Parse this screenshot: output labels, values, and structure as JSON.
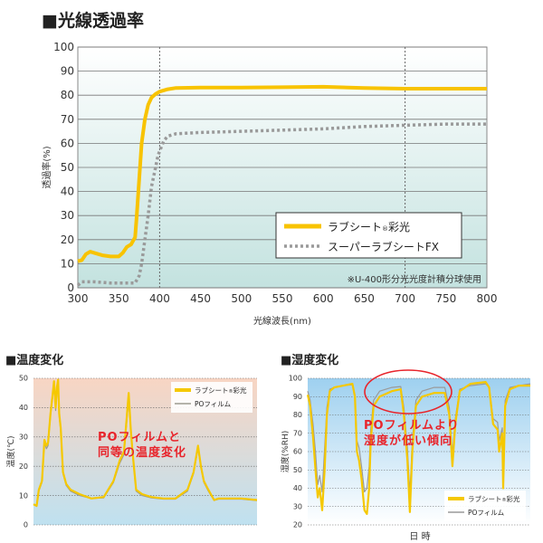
{
  "chart_data": [
    {
      "type": "line",
      "title": "■光線透過率",
      "xlabel": "光線波長(nm)",
      "ylabel": "透過率(%)",
      "xlim": [
        300,
        800
      ],
      "ylim": [
        0,
        100
      ],
      "xticks": [
        300,
        350,
        400,
        450,
        500,
        550,
        600,
        650,
        700,
        750,
        800
      ],
      "yticks": [
        0,
        10,
        20,
        30,
        40,
        50,
        60,
        70,
        80,
        90,
        100
      ],
      "grid": true,
      "reference_lines_x": [
        400,
        700
      ],
      "legend_placement": "bottom-right",
      "annotation": "※U-400形分光光度計積分球使用",
      "background": [
        "#ffffff",
        "#c3e2df"
      ],
      "series": [
        {
          "name": "ラブシート®彩光",
          "color": "#f8c300",
          "style": "solid",
          "x": [
            300,
            305,
            310,
            315,
            320,
            330,
            340,
            350,
            355,
            360,
            365,
            370,
            372,
            375,
            378,
            382,
            386,
            390,
            395,
            400,
            410,
            420,
            450,
            500,
            550,
            600,
            650,
            700,
            750,
            800
          ],
          "y": [
            11,
            11.5,
            14,
            15,
            14.5,
            13.5,
            13,
            13,
            14.5,
            17,
            18,
            21,
            30,
            45,
            60,
            70,
            76,
            79,
            80.5,
            81.5,
            82.5,
            83,
            83.2,
            83.2,
            83.3,
            83.5,
            83,
            82.7,
            82.7,
            82.7
          ]
        },
        {
          "name": "スーパーラブシートFX",
          "color": "#9a9a9a",
          "style": "dotted",
          "x": [
            300,
            305,
            320,
            340,
            350,
            360,
            370,
            375,
            378,
            382,
            386,
            390,
            395,
            398,
            405,
            410,
            420,
            450,
            500,
            550,
            600,
            650,
            700,
            750,
            800
          ],
          "y": [
            1,
            2.5,
            2.5,
            2,
            2,
            2,
            2,
            5,
            10,
            20,
            30,
            42,
            50,
            55,
            61,
            63,
            64,
            64.5,
            65,
            65.5,
            66,
            67,
            67.5,
            68,
            68
          ]
        }
      ]
    },
    {
      "type": "line",
      "title": "■温度変化",
      "ylabel": "温度(℃)",
      "ylim": [
        0,
        50
      ],
      "xlim": [
        0,
        100
      ],
      "yticks": [
        0,
        10,
        20,
        30,
        40,
        50
      ],
      "grid": true,
      "legend_placement": "top-right",
      "annotation": "POフィルムと\n同等の温度変化",
      "background": [
        "#f8d5c3",
        "#bfe1f0"
      ],
      "series": [
        {
          "name": "ラブシート®彩光",
          "color": "#f5c800",
          "x": [
            0,
            1.4,
            2.4,
            3.8,
            4.9,
            5.8,
            6.5,
            7.6,
            8.5,
            9.2,
            9.9,
            10.5,
            11,
            11.5,
            12.2,
            13.2,
            14.6,
            16.6,
            20.6,
            25.9,
            31.4,
            35.8,
            38.6,
            40.5,
            42.6,
            43.5,
            44.3,
            45.9,
            48.6,
            52.7,
            58.1,
            63.5,
            68.9,
            71.6,
            73.6,
            74.9,
            76.2,
            78.2,
            80.8,
            82.8,
            87.6,
            93,
            100
          ],
          "y": [
            7,
            6.5,
            12,
            15,
            29,
            27,
            28,
            38,
            44,
            49,
            40,
            47,
            49.5,
            38,
            33,
            18,
            14,
            12,
            10.5,
            9,
            9.5,
            15,
            22,
            25,
            45,
            33,
            25,
            12,
            10.5,
            9.5,
            9,
            9,
            12,
            18,
            27,
            20,
            15,
            12,
            8.5,
            9,
            9,
            9,
            8.5
          ]
        },
        {
          "name": "POフィルム",
          "color": "#9b9b8f",
          "x": [
            0,
            1.4,
            2.4,
            3.8,
            4.9,
            5.8,
            6.5,
            7.6,
            8.5,
            9.2,
            9.9,
            10.5,
            11,
            11.5,
            12.2,
            13.2,
            14.6,
            16.6,
            20.6,
            25.9,
            31.4,
            35.8,
            38.6,
            40.5,
            42.6,
            43.5,
            44.3,
            45.9,
            48.6,
            52.7,
            58.1,
            63.5,
            68.9,
            71.6,
            73.6,
            74.9,
            76.2,
            78.2,
            80.8,
            82.8,
            87.6,
            93,
            100
          ],
          "y": [
            7,
            6.3,
            11.5,
            14.5,
            28,
            26,
            27,
            37,
            43,
            48.5,
            39,
            45,
            48,
            37,
            32,
            17.5,
            13.5,
            11.5,
            10,
            9,
            9.2,
            14.5,
            21,
            24,
            43,
            32,
            24,
            11.5,
            10,
            9.2,
            8.8,
            8.8,
            11.5,
            17.5,
            26,
            19.5,
            14.5,
            11.5,
            8.3,
            8.8,
            8.8,
            8.8,
            8.3
          ]
        }
      ]
    },
    {
      "type": "line",
      "title": "■湿度変化",
      "xlabel": "日 時",
      "ylabel": "湿度(%RH)",
      "ylim": [
        20,
        100
      ],
      "xlim": [
        0,
        100
      ],
      "yticks": [
        20,
        30,
        40,
        50,
        60,
        70,
        80,
        90,
        100
      ],
      "grid": true,
      "legend_placement": "bottom-right",
      "annotation": "POフィルムより\n湿度が低い傾向",
      "background": [
        "#9ed0ef",
        "#ffffff"
      ],
      "series": [
        {
          "name": "ラブシート®彩光",
          "color": "#f5c800",
          "x": [
            0,
            1.1,
            2.4,
            3.5,
            4.5,
            5.4,
            6.5,
            7.6,
            8.6,
            9.9,
            11.9,
            16,
            20.1,
            21.2,
            22.1,
            23.1,
            24.2,
            25.5,
            26.6,
            27.6,
            28.3,
            29.6,
            32.3,
            37.8,
            41.8,
            43.2,
            44.8,
            45.9,
            47,
            48.6,
            51.4,
            56.8,
            61.6,
            63.6,
            65,
            66.3,
            68.3,
            73.1,
            79.9,
            81.5,
            83.3,
            85.3,
            86,
            87.4,
            87.8,
            88.7,
            90.8,
            94.8,
            100
          ],
          "y": [
            91,
            85,
            68,
            50,
            35,
            40,
            28,
            50,
            80,
            93,
            95,
            96,
            97,
            90,
            60,
            55,
            45,
            28,
            26,
            40,
            65,
            85,
            90,
            93,
            94,
            80,
            55,
            27,
            60,
            85,
            90,
            92,
            92,
            80,
            52,
            75,
            93,
            97,
            98,
            95,
            75,
            72,
            60,
            70,
            40,
            85,
            94,
            96,
            96
          ]
        },
        {
          "name": "POフィルム",
          "color": "#9a9a9a",
          "x": [
            0,
            1.1,
            2.4,
            3.5,
            4.5,
            5.4,
            6.5,
            7.6,
            8.6,
            9.9,
            11.9,
            16,
            20.1,
            21.2,
            22.1,
            23.1,
            24.2,
            25.5,
            26.6,
            27.6,
            28.3,
            29.6,
            32.3,
            37.8,
            41.8,
            43.2,
            44.8,
            45.9,
            47,
            48.6,
            51.4,
            56.8,
            61.6,
            63.6,
            65,
            66.3,
            68.3,
            73.1,
            79.9,
            81.5,
            83.3,
            85.3,
            86,
            87.4,
            87.8,
            88.7,
            90.8,
            94.8,
            100
          ],
          "y": [
            93,
            88,
            75,
            60,
            42,
            47,
            38,
            62,
            84,
            94,
            95,
            96,
            96.5,
            91,
            66,
            62,
            52,
            38,
            40,
            52,
            72,
            88,
            93,
            95,
            95.5,
            84,
            62,
            37,
            66,
            88,
            93,
            95,
            95,
            84,
            58,
            78,
            94,
            96,
            97,
            95,
            78,
            76,
            66,
            73,
            50,
            88,
            95,
            96,
            97
          ]
        }
      ]
    }
  ],
  "legend_labels": {
    "main_yellow_base": "ラブシート",
    "main_yellow_mark": "®",
    "main_yellow_tail": "彩光",
    "main_grey": "スーパーラブシートFX",
    "sub_yellow_base": "ラブシート",
    "sub_yellow_mark": "®",
    "sub_yellow_tail": "彩光",
    "sub_grey": "POフィルム"
  }
}
